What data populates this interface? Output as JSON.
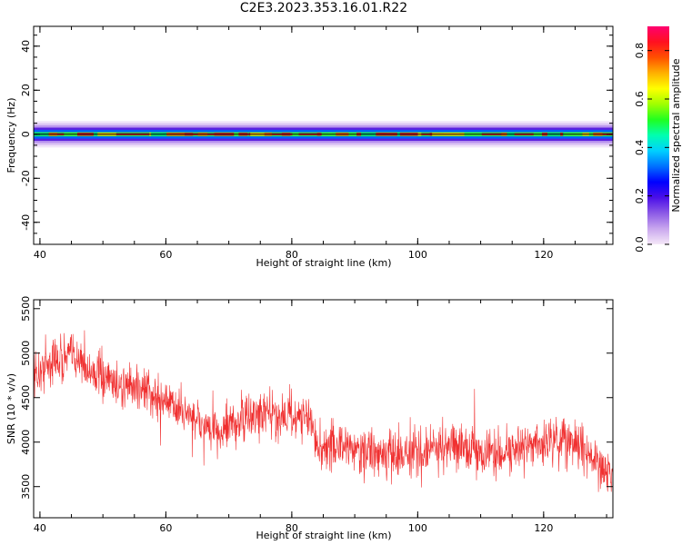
{
  "title": "C2E3.2023.353.16.01.R22",
  "chart_data": [
    {
      "type": "heatmap",
      "xlabel": "Height of straight line (km)",
      "ylabel": "Frequency (Hz)",
      "xlim": [
        39,
        131
      ],
      "ylim": [
        -50,
        49
      ],
      "x_ticks": [
        40,
        60,
        80,
        100,
        120
      ],
      "y_ticks": [
        40,
        20,
        0,
        -20,
        -40
      ],
      "band": {
        "center_hz": 0,
        "halfwidths_hz": [
          6,
          5,
          4,
          3,
          2,
          1,
          0.5
        ]
      },
      "colorbar": {
        "label": "Normalized spectral amplitude",
        "range": [
          0,
          0.9
        ],
        "ticks": [
          0.0,
          0.2,
          0.4,
          0.6,
          0.8
        ],
        "stops": [
          "#f5e8f8",
          "#c9a7ee",
          "#8c5ae6",
          "#4b0fe8",
          "#0000ff",
          "#0070ff",
          "#00d0ff",
          "#00ffb0",
          "#20ff20",
          "#a0ff00",
          "#ffff00",
          "#ffb000",
          "#ff5000",
          "#ff1020",
          "#ff0070"
        ]
      }
    },
    {
      "type": "line",
      "xlabel": "Height of straight line (km)",
      "ylabel": "SNR (10 * v/v)",
      "xlim": [
        39,
        131
      ],
      "ylim": [
        3150,
        5600
      ],
      "x_ticks": [
        40,
        60,
        80,
        100,
        120
      ],
      "y_ticks": [
        5500,
        5000,
        4500,
        4000,
        3500
      ],
      "color": "#f03030",
      "trend": {
        "x": [
          39,
          42,
          45,
          48,
          52,
          56,
          60,
          64,
          68,
          72,
          76,
          80,
          83,
          84,
          88,
          92,
          96,
          100,
          104,
          108,
          112,
          116,
          120,
          124,
          128,
          131
        ],
        "y": [
          4750,
          4900,
          5000,
          4800,
          4650,
          4600,
          4450,
          4300,
          4100,
          4250,
          4300,
          4300,
          4250,
          3950,
          3950,
          3900,
          3850,
          3900,
          3950,
          3950,
          3850,
          3900,
          4000,
          4050,
          3800,
          3600
        ]
      },
      "noise_amplitude": 180
    }
  ]
}
